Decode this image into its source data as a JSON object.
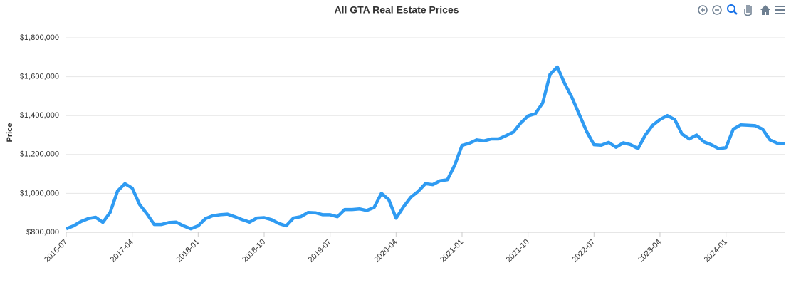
{
  "chart_data": {
    "type": "line",
    "title": "All GTA Real Estate Prices",
    "ylabel": "Price",
    "x": [
      "2016-07",
      "2016-08",
      "2016-09",
      "2016-10",
      "2016-11",
      "2016-12",
      "2017-01",
      "2017-02",
      "2017-03",
      "2017-04",
      "2017-05",
      "2017-06",
      "2017-07",
      "2017-08",
      "2017-09",
      "2017-10",
      "2017-11",
      "2017-12",
      "2018-01",
      "2018-02",
      "2018-03",
      "2018-04",
      "2018-05",
      "2018-06",
      "2018-07",
      "2018-08",
      "2018-09",
      "2018-10",
      "2018-11",
      "2018-12",
      "2019-01",
      "2019-02",
      "2019-03",
      "2019-04",
      "2019-05",
      "2019-06",
      "2019-07",
      "2019-08",
      "2019-09",
      "2019-10",
      "2019-11",
      "2019-12",
      "2020-01",
      "2020-02",
      "2020-03",
      "2020-04",
      "2020-05",
      "2020-06",
      "2020-07",
      "2020-08",
      "2020-09",
      "2020-10",
      "2020-11",
      "2020-12",
      "2021-01",
      "2021-02",
      "2021-03",
      "2021-04",
      "2021-05",
      "2021-06",
      "2021-07",
      "2021-08",
      "2021-09",
      "2021-10",
      "2021-11",
      "2021-12",
      "2022-01",
      "2022-02",
      "2022-03",
      "2022-04",
      "2022-05",
      "2022-06",
      "2022-07",
      "2022-08",
      "2022-09",
      "2022-10",
      "2022-11",
      "2022-12",
      "2023-01",
      "2023-02",
      "2023-03",
      "2023-04",
      "2023-05",
      "2023-06",
      "2023-07",
      "2023-08",
      "2023-09",
      "2023-10",
      "2023-11",
      "2023-12",
      "2024-01",
      "2024-02",
      "2024-03",
      "2024-04",
      "2024-05",
      "2024-06",
      "2024-07",
      "2024-08",
      "2024-09"
    ],
    "series": [
      {
        "name": "Price",
        "color": "#2f9bf2",
        "values": [
          818000,
          833000,
          855000,
          870000,
          877000,
          851000,
          903000,
          1012000,
          1050000,
          1027000,
          943000,
          895000,
          840000,
          840000,
          850000,
          852000,
          833000,
          818000,
          833000,
          870000,
          885000,
          890000,
          893000,
          880000,
          865000,
          852000,
          873000,
          875000,
          865000,
          845000,
          833000,
          873000,
          880000,
          902000,
          900000,
          890000,
          890000,
          880000,
          917000,
          917000,
          920000,
          912000,
          927000,
          1000000,
          968000,
          872000,
          930000,
          980000,
          1010000,
          1050000,
          1045000,
          1065000,
          1070000,
          1145000,
          1247000,
          1258000,
          1275000,
          1270000,
          1280000,
          1280000,
          1297000,
          1315000,
          1362000,
          1398000,
          1410000,
          1465000,
          1612000,
          1650000,
          1565000,
          1492000,
          1405000,
          1318000,
          1250000,
          1248000,
          1262000,
          1237000,
          1260000,
          1250000,
          1230000,
          1300000,
          1350000,
          1380000,
          1400000,
          1380000,
          1305000,
          1280000,
          1300000,
          1265000,
          1250000,
          1230000,
          1235000,
          1330000,
          1352000,
          1350000,
          1348000,
          1330000,
          1275000,
          1258000,
          1256000
        ]
      }
    ],
    "xticks": [
      "2016-07",
      "2017-04",
      "2018-01",
      "2018-10",
      "2019-07",
      "2020-04",
      "2021-01",
      "2021-10",
      "2022-07",
      "2023-04",
      "2024-01"
    ],
    "ylim": [
      800000,
      1800000
    ],
    "yticks": [
      {
        "value": 800000,
        "label": "$800,000"
      },
      {
        "value": 1000000,
        "label": "$1,000,000"
      },
      {
        "value": 1200000,
        "label": "$1,200,000"
      },
      {
        "value": 1400000,
        "label": "$1,400,000"
      },
      {
        "value": 1600000,
        "label": "$1,600,000"
      },
      {
        "value": 1800000,
        "label": "$1,800,000"
      }
    ],
    "grid": true
  }
}
